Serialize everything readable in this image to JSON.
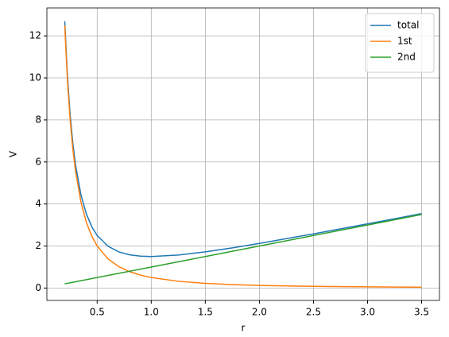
{
  "chart_data": {
    "type": "line",
    "x_label": "r",
    "y_label": "V",
    "x": [
      0.2,
      0.225,
      0.25,
      0.275,
      0.3,
      0.35,
      0.4,
      0.45,
      0.5,
      0.6,
      0.7,
      0.8,
      0.9,
      1.0,
      1.25,
      1.5,
      1.75,
      2.0,
      2.5,
      3.0,
      3.5
    ],
    "series": [
      {
        "name": "total",
        "color": "#1f77b4",
        "values": [
          12.7,
          10.102,
          8.25,
          6.887,
          5.856,
          4.432,
          3.525,
          2.919,
          2.5,
          1.989,
          1.72,
          1.581,
          1.517,
          1.5,
          1.57,
          1.722,
          1.913,
          2.125,
          2.58,
          3.056,
          3.541
        ]
      },
      {
        "name": "1st",
        "color": "#ff7f0e",
        "values": [
          12.5,
          9.877,
          8,
          6.612,
          5.556,
          4.082,
          3.125,
          2.469,
          2,
          1.389,
          1.02,
          0.781,
          0.617,
          0.5,
          0.32,
          0.222,
          0.163,
          0.125,
          0.08,
          0.056,
          0.041
        ]
      },
      {
        "name": "2nd",
        "color": "#2ca02c",
        "values": [
          0.2,
          0.225,
          0.25,
          0.275,
          0.3,
          0.35,
          0.4,
          0.45,
          0.5,
          0.6,
          0.7,
          0.8,
          0.9,
          1.0,
          1.25,
          1.5,
          1.75,
          2.0,
          2.5,
          3.0,
          3.5
        ]
      }
    ],
    "xlim": [
      0.035,
      3.665
    ],
    "ylim": [
      -0.59,
      13.33
    ],
    "xticks": [
      0.5,
      {
        "value": 1,
        "label": "1.0"
      },
      1.5,
      {
        "value": 2,
        "label": "2.0"
      },
      2.5,
      {
        "value": 3,
        "label": "3.0"
      },
      3.5
    ],
    "yticks": [
      0,
      2,
      4,
      6,
      8,
      10,
      12
    ],
    "grid": true,
    "legend": "upper-right"
  }
}
